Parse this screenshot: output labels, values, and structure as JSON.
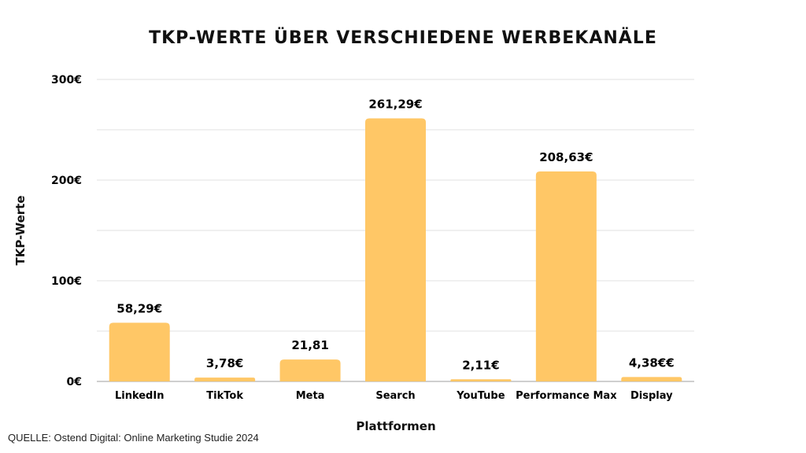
{
  "chart_data": {
    "type": "bar",
    "title": "TKP-WERTE ÜBER VERSCHIEDENE WERBEKANÄLE",
    "xlabel": "Plattformen",
    "ylabel": "TKP-Werte",
    "categories": [
      "LinkedIn",
      "TikTok",
      "Meta",
      "Search",
      "YouTube",
      "Performance Max",
      "Display"
    ],
    "values": [
      58.29,
      3.78,
      21.81,
      261.29,
      2.11,
      208.63,
      4.38
    ],
    "data_labels": [
      "58,29€",
      "3,78€",
      "21,81",
      "261,29€",
      "2,11€",
      "208,63€",
      "4,38€€"
    ],
    "ylim": [
      0,
      300
    ],
    "yticks": [
      0,
      100,
      200,
      300
    ],
    "ytick_labels": [
      "0€",
      "100€",
      "200€",
      "300€"
    ],
    "grid": true,
    "gridline_step": 50,
    "bar_color": "#FFC766"
  },
  "source": "QUELLE: Ostend Digital: Online Marketing Studie 2024"
}
